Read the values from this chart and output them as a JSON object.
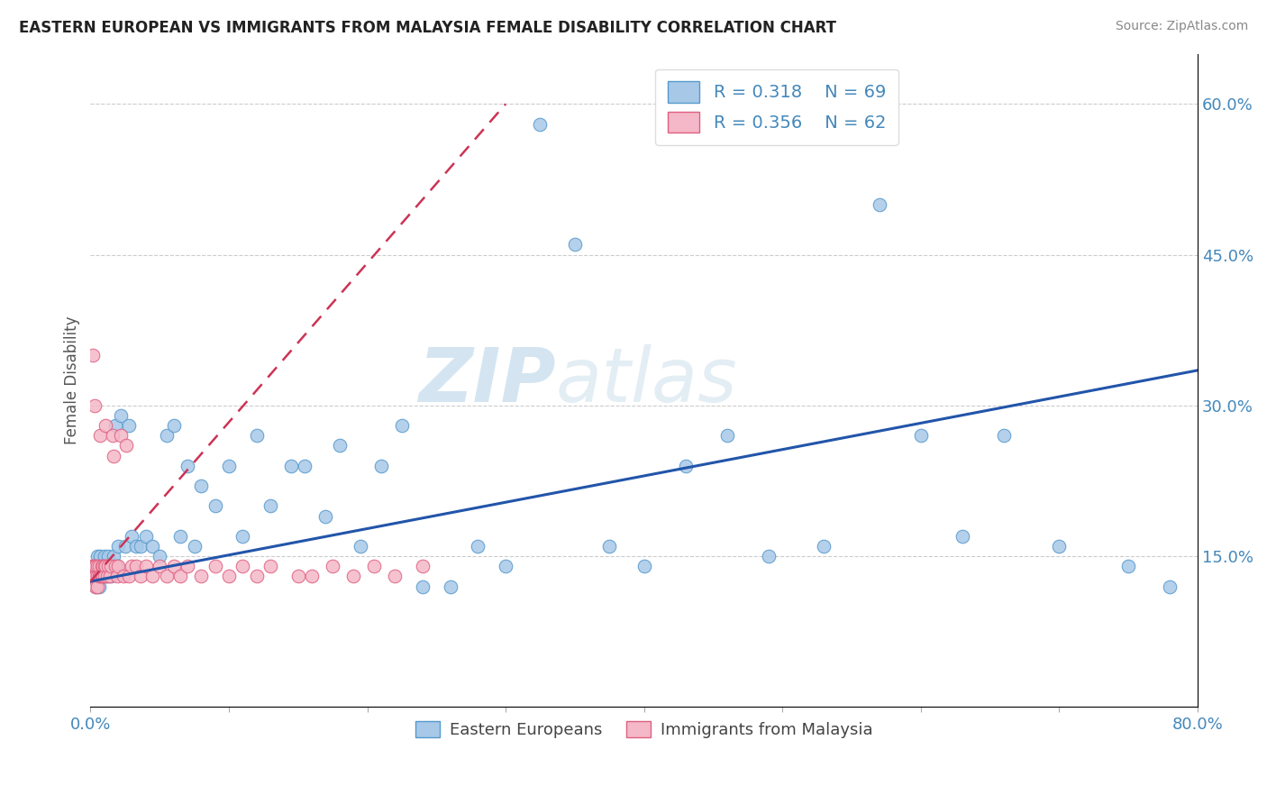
{
  "title": "EASTERN EUROPEAN VS IMMIGRANTS FROM MALAYSIA FEMALE DISABILITY CORRELATION CHART",
  "source": "Source: ZipAtlas.com",
  "ylabel": "Female Disability",
  "xlim": [
    0.0,
    0.8
  ],
  "ylim": [
    0.0,
    0.65
  ],
  "yticks_right": [
    0.15,
    0.3,
    0.45,
    0.6
  ],
  "ytick_right_labels": [
    "15.0%",
    "30.0%",
    "45.0%",
    "60.0%"
  ],
  "legend_R1": "0.318",
  "legend_N1": "69",
  "legend_R2": "0.356",
  "legend_N2": "62",
  "color_blue": "#a8c8e8",
  "color_blue_line": "#5599cc",
  "color_pink": "#f4b8c8",
  "color_pink_line": "#e06080",
  "color_trendline_blue": "#2255aa",
  "color_trendline_pink": "#cc3355",
  "watermark_zip": "ZIP",
  "watermark_atlas": "atlas",
  "blue_trend_x0": 0.0,
  "blue_trend_y0": 0.125,
  "blue_trend_x1": 0.8,
  "blue_trend_y1": 0.335,
  "pink_trend_x0": 0.0,
  "pink_trend_y0": 0.125,
  "pink_trend_x1": 0.3,
  "pink_trend_y1": 0.6,
  "blue_x": [
    0.002,
    0.003,
    0.004,
    0.005,
    0.005,
    0.006,
    0.006,
    0.007,
    0.007,
    0.008,
    0.009,
    0.01,
    0.01,
    0.011,
    0.012,
    0.013,
    0.014,
    0.015,
    0.016,
    0.017,
    0.018,
    0.019,
    0.02,
    0.022,
    0.025,
    0.028,
    0.03,
    0.033,
    0.036,
    0.04,
    0.045,
    0.05,
    0.055,
    0.06,
    0.065,
    0.07,
    0.075,
    0.08,
    0.09,
    0.1,
    0.11,
    0.12,
    0.13,
    0.145,
    0.155,
    0.17,
    0.18,
    0.195,
    0.21,
    0.225,
    0.24,
    0.26,
    0.28,
    0.3,
    0.325,
    0.35,
    0.375,
    0.4,
    0.43,
    0.46,
    0.49,
    0.53,
    0.57,
    0.6,
    0.63,
    0.66,
    0.7,
    0.75,
    0.78
  ],
  "blue_y": [
    0.13,
    0.14,
    0.12,
    0.15,
    0.13,
    0.14,
    0.12,
    0.15,
    0.13,
    0.14,
    0.13,
    0.15,
    0.13,
    0.14,
    0.13,
    0.15,
    0.14,
    0.13,
    0.14,
    0.15,
    0.28,
    0.14,
    0.16,
    0.29,
    0.16,
    0.28,
    0.17,
    0.16,
    0.16,
    0.17,
    0.16,
    0.15,
    0.27,
    0.28,
    0.17,
    0.24,
    0.16,
    0.22,
    0.2,
    0.24,
    0.17,
    0.27,
    0.2,
    0.24,
    0.24,
    0.19,
    0.26,
    0.16,
    0.24,
    0.28,
    0.12,
    0.12,
    0.16,
    0.14,
    0.58,
    0.46,
    0.16,
    0.14,
    0.24,
    0.27,
    0.15,
    0.16,
    0.5,
    0.27,
    0.17,
    0.27,
    0.16,
    0.14,
    0.12
  ],
  "pink_x": [
    0.001,
    0.001,
    0.002,
    0.002,
    0.002,
    0.003,
    0.003,
    0.003,
    0.004,
    0.004,
    0.004,
    0.005,
    0.005,
    0.005,
    0.006,
    0.006,
    0.007,
    0.007,
    0.008,
    0.008,
    0.009,
    0.009,
    0.01,
    0.01,
    0.011,
    0.011,
    0.012,
    0.013,
    0.014,
    0.015,
    0.016,
    0.017,
    0.018,
    0.019,
    0.02,
    0.022,
    0.024,
    0.026,
    0.028,
    0.03,
    0.033,
    0.036,
    0.04,
    0.045,
    0.05,
    0.055,
    0.06,
    0.065,
    0.07,
    0.08,
    0.09,
    0.1,
    0.11,
    0.12,
    0.13,
    0.15,
    0.16,
    0.175,
    0.19,
    0.205,
    0.22,
    0.24
  ],
  "pink_y": [
    0.13,
    0.14,
    0.13,
    0.14,
    0.35,
    0.13,
    0.14,
    0.3,
    0.13,
    0.14,
    0.12,
    0.13,
    0.14,
    0.12,
    0.13,
    0.14,
    0.13,
    0.27,
    0.14,
    0.13,
    0.14,
    0.13,
    0.14,
    0.13,
    0.14,
    0.28,
    0.13,
    0.14,
    0.13,
    0.14,
    0.27,
    0.25,
    0.14,
    0.13,
    0.14,
    0.27,
    0.13,
    0.26,
    0.13,
    0.14,
    0.14,
    0.13,
    0.14,
    0.13,
    0.14,
    0.13,
    0.14,
    0.13,
    0.14,
    0.13,
    0.14,
    0.13,
    0.14,
    0.13,
    0.14,
    0.13,
    0.13,
    0.14,
    0.13,
    0.14,
    0.13,
    0.14
  ]
}
